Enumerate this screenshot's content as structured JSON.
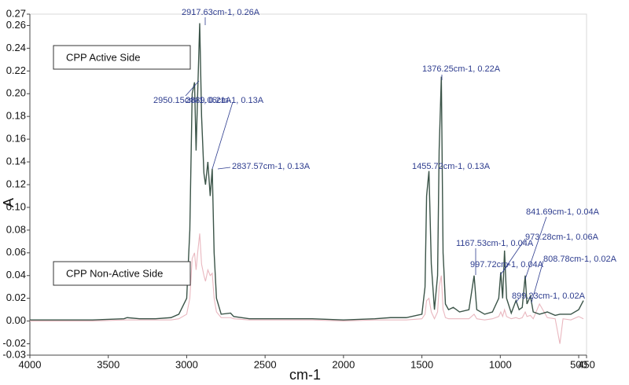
{
  "chart_data": {
    "type": "line",
    "x_label": "cm-1",
    "y_label": "A",
    "xlim": [
      4000,
      450
    ],
    "xticks": [
      4000,
      3500,
      3000,
      2500,
      2000,
      1500,
      1000,
      500,
      450
    ],
    "ylim": [
      -0.03,
      0.27
    ],
    "yticks": [
      -0.03,
      -0.02,
      {
        "value": 0,
        "label": "0.00"
      },
      0.02,
      0.04,
      0.06,
      0.08,
      {
        "value": 0.1,
        "label": "0.10"
      },
      0.12,
      0.14,
      0.16,
      0.18,
      {
        "value": 0.2,
        "label": "0.20"
      },
      0.22,
      0.24,
      0.26,
      0.27
    ],
    "x": [
      4000,
      3800,
      3600,
      3400,
      3380,
      3300,
      3200,
      3100,
      3050,
      3000,
      2980,
      2965,
      2950,
      2940,
      2930,
      2917,
      2905,
      2890,
      2880,
      2865,
      2850,
      2837,
      2825,
      2810,
      2780,
      2720,
      2700,
      2600,
      2400,
      2200,
      2000,
      1800,
      1700,
      1600,
      1500,
      1480,
      1470,
      1455,
      1440,
      1420,
      1400,
      1390,
      1376,
      1365,
      1360,
      1350,
      1330,
      1300,
      1260,
      1200,
      1167,
      1150,
      1100,
      1050,
      1010,
      997,
      985,
      973,
      960,
      930,
      900,
      880,
      860,
      841,
      830,
      808,
      790,
      750,
      700,
      650,
      620,
      600,
      550,
      500,
      470
    ],
    "series": [
      {
        "name": "CPP Active Side",
        "color": "#3b5448",
        "values": [
          0.001,
          0.001,
          0.001,
          0.002,
          0.003,
          0.002,
          0.002,
          0.003,
          0.006,
          0.02,
          0.08,
          0.2,
          0.21,
          0.15,
          0.2,
          0.262,
          0.18,
          0.13,
          0.12,
          0.14,
          0.11,
          0.134,
          0.06,
          0.02,
          0.006,
          0.007,
          0.004,
          0.002,
          0.002,
          0.002,
          0.001,
          0.002,
          0.003,
          0.003,
          0.006,
          0.03,
          0.11,
          0.132,
          0.05,
          0.01,
          0.04,
          0.15,
          0.215,
          0.06,
          0.046,
          0.015,
          0.01,
          0.012,
          0.008,
          0.01,
          0.04,
          0.01,
          0.006,
          0.008,
          0.02,
          0.043,
          0.02,
          0.062,
          0.02,
          0.007,
          0.018,
          0.01,
          0.012,
          0.04,
          0.015,
          0.022,
          0.008,
          0.006,
          0.008,
          0.005,
          0.006,
          0.006,
          0.006,
          0.01,
          0.018
        ]
      },
      {
        "name": "CPP Non-Active Side",
        "color": "#e9b7bf",
        "values": [
          0,
          0,
          0,
          0.001,
          0.001,
          0.001,
          0.001,
          0.001,
          0.002,
          0.006,
          0.02,
          0.055,
          0.06,
          0.045,
          0.06,
          0.077,
          0.05,
          0.04,
          0.035,
          0.045,
          0.04,
          0.042,
          0.02,
          0.008,
          0.003,
          0.003,
          0.002,
          0.001,
          0.001,
          0.001,
          0,
          0.001,
          0.001,
          0.001,
          0.002,
          0.006,
          0.018,
          0.02,
          0.008,
          0.002,
          0.008,
          0.03,
          0.04,
          0.01,
          0.008,
          0.003,
          0.002,
          0.002,
          0.002,
          0.002,
          0.006,
          0.002,
          0.001,
          0.002,
          0.004,
          0.008,
          0.004,
          0.01,
          0.004,
          0.002,
          0.003,
          0.002,
          0.003,
          0.008,
          0.004,
          0.005,
          0.002,
          0.015,
          0.003,
          0.002,
          -0.02,
          0.002,
          0.001,
          0.004,
          0.002
        ]
      }
    ],
    "annotations": [
      "2917.63cm-1, 0.26A",
      "2950.15cm-1, 0.21A",
      "2889.06cm-1, 0.13A",
      "2837.57cm-1, 0.13A",
      "1376.25cm-1, 0.22A",
      "1455.72cm-1, 0.13A",
      "1167.53cm-1, 0.04A",
      "973.28cm-1, 0.06A",
      "997.72cm-1, 0.04A",
      "841.69cm-1, 0.04A",
      "808.78cm-1, 0.02A",
      "899.23cm-1, 0.02A"
    ]
  }
}
